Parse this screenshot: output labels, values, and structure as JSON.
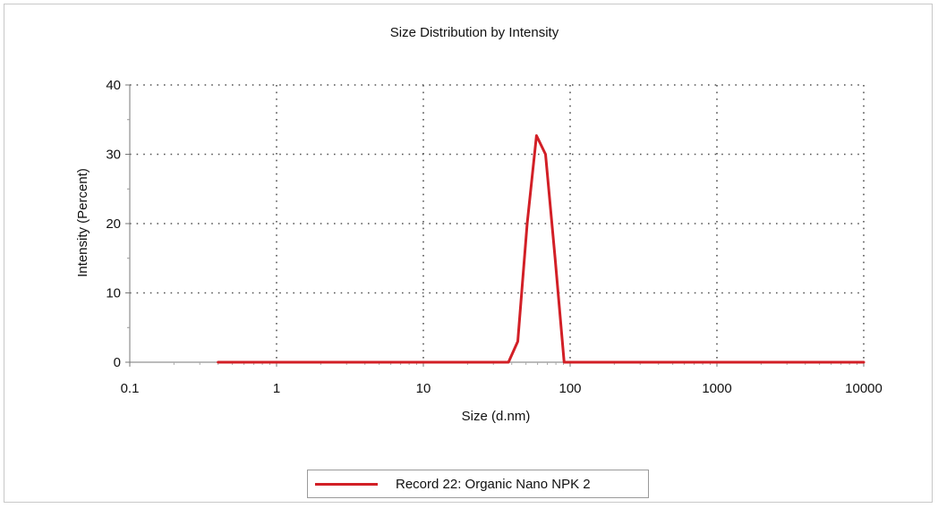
{
  "chart_data": {
    "type": "line",
    "title": "Size Distribution by Intensity",
    "xlabel": "Size (d.nm)",
    "ylabel": "Intensity (Percent)",
    "xscale": "log",
    "xlim": [
      0.1,
      10000
    ],
    "ylim": [
      0,
      40
    ],
    "x_ticks": [
      0.1,
      1,
      10,
      100,
      1000,
      10000
    ],
    "x_tick_labels": [
      "0.1",
      "1",
      "10",
      "100",
      "1000",
      "10000"
    ],
    "y_ticks": [
      0,
      10,
      20,
      30,
      40
    ],
    "y_tick_labels": [
      "0",
      "10",
      "20",
      "30",
      "40"
    ],
    "grid": true,
    "legend_position": "bottom-center",
    "series": [
      {
        "name": "Record 22: Organic Nano NPK 2",
        "color": "#d21f26",
        "x": [
          0.4,
          1,
          10,
          38,
          44,
          51,
          59,
          68,
          79,
          91,
          100,
          1000,
          10000
        ],
        "y": [
          0,
          0,
          0,
          0,
          3,
          20,
          32.7,
          30,
          15,
          0,
          0,
          0,
          0
        ]
      }
    ]
  }
}
